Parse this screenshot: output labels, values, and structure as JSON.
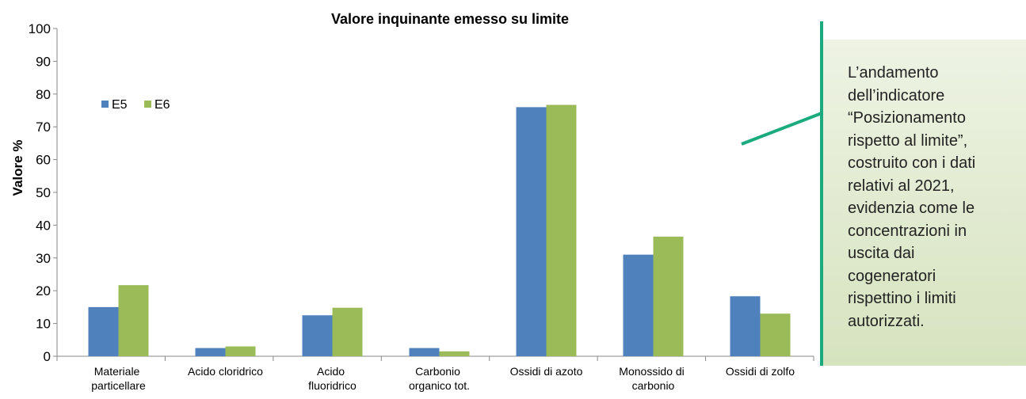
{
  "chart_data": {
    "type": "bar",
    "title": "Valore inquinante emesso su limite",
    "y_label": "Valore %",
    "categories": [
      "Materiale particellare",
      "Acido cloridrico",
      "Acido fluoridrico",
      "Carbonio organico tot.",
      "Ossidi di azoto",
      "Monossido di carbonio",
      "Ossidi di zolfo"
    ],
    "series": [
      {
        "name": "E5",
        "color": "#4f81bd",
        "values": [
          15,
          2.5,
          12.5,
          2.5,
          76,
          31,
          18.3
        ]
      },
      {
        "name": "E6",
        "color": "#9bbb59",
        "values": [
          21.7,
          3,
          14.8,
          1.5,
          76.7,
          36.5,
          13
        ]
      }
    ],
    "ylim": [
      0,
      100
    ],
    "yticks": [
      0,
      10,
      20,
      30,
      40,
      50,
      60,
      70,
      80,
      90,
      100
    ],
    "grid": false,
    "legend": "upper left"
  },
  "note": "L’andamento dell’indicatore “Posizionamento rispetto al limite”, costruito con i dati relativi al 2021, evidenzia come le concentrazioni in uscita dai cogeneratori rispettino i limiti autorizzati."
}
